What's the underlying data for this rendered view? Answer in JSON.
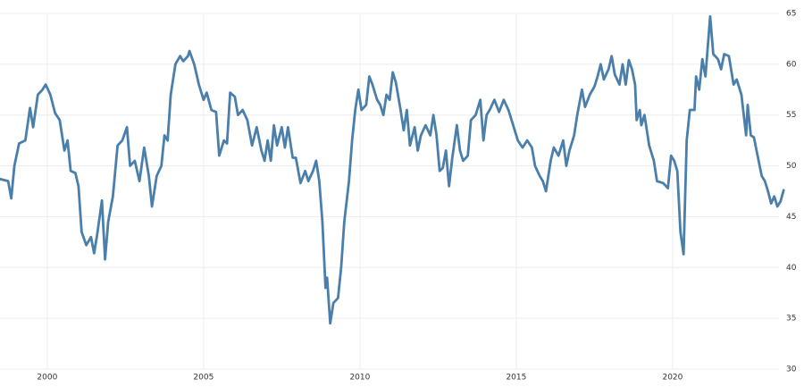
{
  "chart_data": {
    "type": "line",
    "x": [
      1998.5,
      1998.75,
      1998.85,
      1998.95,
      1999.1,
      1999.3,
      1999.45,
      1999.55,
      1999.7,
      1999.85,
      1999.95,
      2000.1,
      2000.25,
      2000.4,
      2000.55,
      2000.65,
      2000.75,
      2000.9,
      2001.0,
      2001.1,
      2001.25,
      2001.4,
      2001.5,
      2001.6,
      2001.75,
      2001.85,
      2001.95,
      2002.1,
      2002.25,
      2002.4,
      2002.55,
      2002.65,
      2002.8,
      2002.95,
      2003.1,
      2003.25,
      2003.35,
      2003.5,
      2003.65,
      2003.75,
      2003.85,
      2003.95,
      2004.1,
      2004.25,
      2004.35,
      2004.5,
      2004.55,
      2004.7,
      2004.85,
      2005.0,
      2005.1,
      2005.25,
      2005.4,
      2005.5,
      2005.65,
      2005.75,
      2005.85,
      2006.0,
      2006.1,
      2006.25,
      2006.4,
      2006.55,
      2006.7,
      2006.85,
      2006.95,
      2007.05,
      2007.15,
      2007.25,
      2007.35,
      2007.5,
      2007.6,
      2007.7,
      2007.85,
      2007.95,
      2008.1,
      2008.25,
      2008.35,
      2008.5,
      2008.6,
      2008.7,
      2008.8,
      2008.9,
      2008.95,
      2009.05,
      2009.15,
      2009.3,
      2009.4,
      2009.5,
      2009.65,
      2009.75,
      2009.85,
      2009.95,
      2010.05,
      2010.2,
      2010.3,
      2010.4,
      2010.55,
      2010.65,
      2010.75,
      2010.85,
      2010.95,
      2011.05,
      2011.15,
      2011.3,
      2011.4,
      2011.5,
      2011.6,
      2011.75,
      2011.85,
      2011.95,
      2012.1,
      2012.25,
      2012.35,
      2012.45,
      2012.55,
      2012.65,
      2012.75,
      2012.85,
      2012.95,
      2013.1,
      2013.2,
      2013.3,
      2013.45,
      2013.55,
      2013.7,
      2013.85,
      2013.95,
      2014.05,
      2014.15,
      2014.3,
      2014.45,
      2014.6,
      2014.75,
      2014.9,
      2015.05,
      2015.2,
      2015.35,
      2015.5,
      2015.6,
      2015.75,
      2015.85,
      2015.95,
      2016.1,
      2016.2,
      2016.35,
      2016.5,
      2016.6,
      2016.7,
      2016.85,
      2016.95,
      2017.1,
      2017.2,
      2017.35,
      2017.5,
      2017.6,
      2017.7,
      2017.8,
      2017.95,
      2018.05,
      2018.15,
      2018.3,
      2018.4,
      2018.5,
      2018.6,
      2018.7,
      2018.8,
      2018.85,
      2018.95,
      2019.0,
      2019.1,
      2019.25,
      2019.4,
      2019.5,
      2019.7,
      2019.85,
      2019.95,
      2020.05,
      2020.15,
      2020.25,
      2020.35,
      2020.45,
      2020.55,
      2020.7,
      2020.75,
      2020.85,
      2020.95,
      2021.05,
      2021.2,
      2021.3,
      2021.45,
      2021.55,
      2021.65,
      2021.8,
      2021.95,
      2022.05,
      2022.2,
      2022.35,
      2022.4,
      2022.5,
      2022.6,
      2022.75,
      2022.85,
      2022.95,
      2023.05,
      2023.15,
      2023.25,
      2023.35,
      2023.45,
      2023.55
    ],
    "series": [
      {
        "color": "#4a7eab",
        "values": [
          48.7,
          48.5,
          46.8,
          50,
          52.2,
          52.5,
          55.7,
          53.8,
          57.0,
          57.5,
          58.0,
          57.0,
          55.2,
          54.5,
          51.5,
          52.5,
          49.5,
          49.3,
          48.0,
          43.5,
          42.2,
          43.0,
          41.4,
          43.3,
          46.6,
          40.8,
          44.5,
          47.0,
          52.0,
          52.5,
          53.8,
          50.0,
          50.5,
          48.5,
          51.8,
          49.0,
          46.0,
          49.0,
          50.0,
          53.0,
          52.5,
          57.0,
          60.0,
          60.8,
          60.3,
          60.8,
          61.3,
          60.0,
          58.0,
          56.5,
          57.2,
          55.5,
          55.3,
          51.0,
          52.5,
          52.2,
          57.2,
          56.8,
          55.0,
          55.5,
          54.5,
          52.0,
          53.8,
          51.5,
          50.5,
          52.5,
          50.5,
          54.0,
          52.0,
          53.8,
          51.8,
          53.8,
          50.8,
          50.8,
          48.3,
          49.5,
          48.5,
          49.5,
          50.5,
          48.5,
          44.5,
          38.0,
          39.0,
          34.5,
          36.5,
          37.0,
          40.0,
          44.5,
          48.5,
          52.5,
          55.5,
          57.5,
          55.5,
          56.0,
          58.8,
          58.0,
          56.5,
          56.0,
          55.0,
          57.0,
          56.5,
          59.2,
          58.2,
          55.5,
          53.5,
          55.5,
          52.0,
          53.8,
          51.5,
          53.0,
          54.0,
          53.0,
          55.0,
          53.0,
          49.5,
          49.8,
          51.5,
          48.0,
          50.7,
          54.0,
          51.5,
          50.5,
          51.0,
          54.5,
          55.0,
          56.5,
          52.5,
          55.0,
          55.5,
          56.5,
          55.3,
          56.5,
          55.5,
          54.0,
          52.5,
          51.8,
          52.5,
          51.8,
          50.0,
          49.0,
          48.5,
          47.5,
          50.5,
          51.8,
          51.0,
          52.5,
          50.0,
          51.5,
          53.0,
          55.0,
          57.5,
          55.8,
          57.0,
          57.8,
          58.8,
          60.0,
          58.5,
          59.5,
          60.8,
          59.0,
          58.0,
          60.0,
          58.0,
          60.4,
          59.5,
          58.0,
          54.5,
          55.5,
          54.0,
          55.0,
          52.0,
          50.5,
          48.5,
          48.3,
          47.8,
          51.0,
          50.5,
          49.5,
          43.5,
          41.3,
          52.5,
          55.5,
          55.5,
          58.8,
          57.5,
          60.5,
          58.8,
          64.7,
          61.0,
          60.5,
          59.5,
          61.0,
          60.8,
          58.0,
          58.5,
          57.0,
          53.0,
          56.0,
          53.0,
          52.8,
          50.5,
          49.0,
          48.5,
          47.5,
          46.3,
          47.0,
          46.0,
          46.5,
          47.6
        ]
      }
    ],
    "xlim": [
      1998.49,
      2023.63
    ],
    "xticks": [
      2000,
      2005,
      2010,
      2015,
      2020
    ],
    "ylim": [
      30,
      65
    ],
    "yticks": [
      30,
      35,
      40,
      45,
      50,
      55,
      60,
      65
    ],
    "grid": true
  }
}
